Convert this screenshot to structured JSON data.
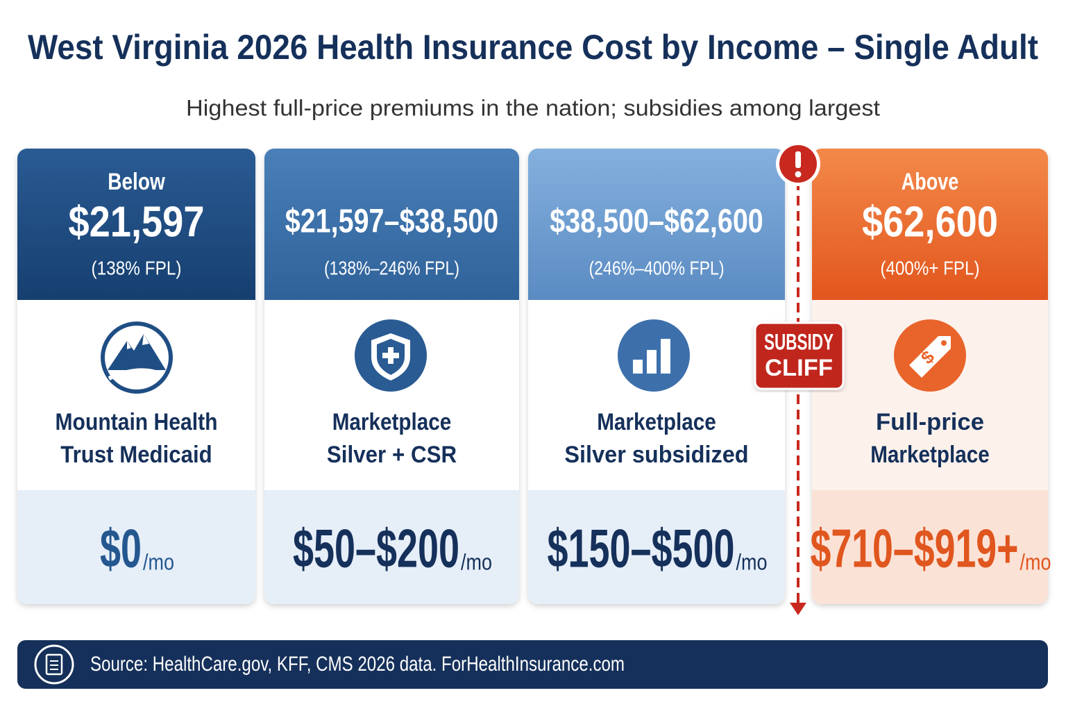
{
  "title": "West Virginia 2026 Health Insurance Cost by Income – Single Adult",
  "subtitle": "Highest full-price premiums in the nation; subsidies among largest",
  "tiers": [
    {
      "lead": "Below",
      "amount": "$21,597",
      "fpl": "(138% FPL)",
      "program": [
        "Mountain Health",
        "Trust Medicaid"
      ],
      "cost": "$0",
      "unit": "/mo"
    },
    {
      "amount": "$21,597–$38,500",
      "fpl": "(138%–246% FPL)",
      "program": [
        "Marketplace",
        "Silver + CSR"
      ],
      "cost": "$50–$200",
      "unit": "/mo"
    },
    {
      "amount": "$38,500–$62,600",
      "fpl": "(246%–400% FPL)",
      "program": [
        "Marketplace",
        "Silver subsidized"
      ],
      "cost": "$150–$500",
      "unit": "/mo"
    },
    {
      "lead": "Above",
      "amount": "$62,600",
      "fpl": "(400%+ FPL)",
      "program": [
        "Full-price",
        "Marketplace"
      ],
      "cost": "$710–$919+",
      "unit": "/mo"
    }
  ],
  "cliff": [
    "SUBSIDY",
    "CLIFF"
  ],
  "source": "Source: HealthCare.gov, KFF, CMS 2026 data. ForHealthInsurance.com"
}
